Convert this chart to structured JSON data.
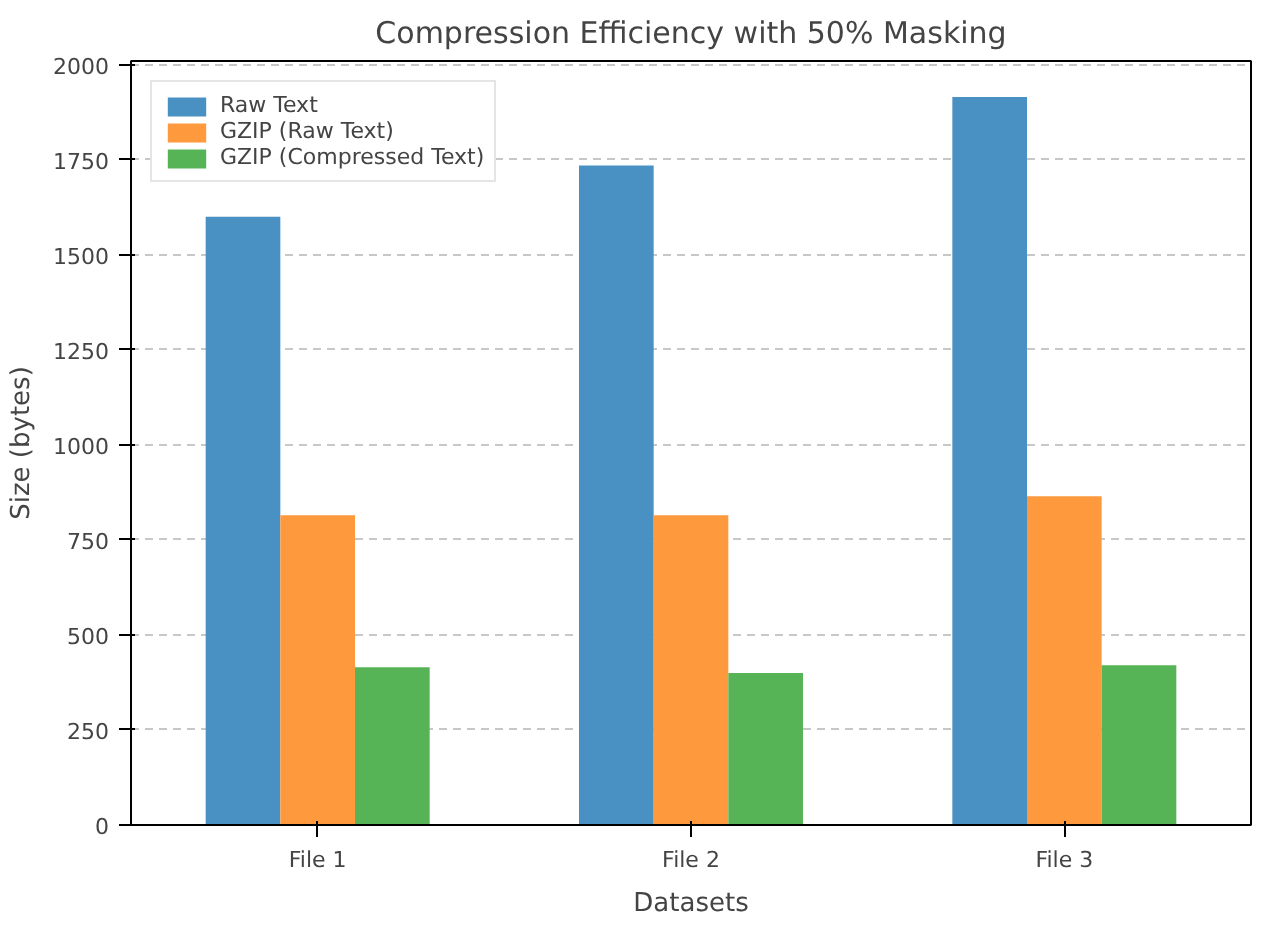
{
  "chart_data": {
    "type": "bar",
    "title": "Compression Efficiency with 50% Masking",
    "xlabel": "Datasets",
    "ylabel": "Size (bytes)",
    "categories": [
      "File 1",
      "File 2",
      "File 3"
    ],
    "series": [
      {
        "name": "Raw Text",
        "color": "#4a91c3",
        "values": [
          1600,
          1735,
          1915
        ]
      },
      {
        "name": "GZIP (Raw Text)",
        "color": "#ff993e",
        "values": [
          815,
          815,
          865
        ]
      },
      {
        "name": "GZIP (Compressed Text)",
        "color": "#56b356",
        "values": [
          415,
          400,
          420
        ]
      }
    ],
    "ylim": [
      0,
      2010
    ],
    "yticks": [
      0,
      250,
      500,
      750,
      1000,
      1250,
      1500,
      1750,
      2000
    ],
    "grid": "y",
    "legend": "top left"
  }
}
